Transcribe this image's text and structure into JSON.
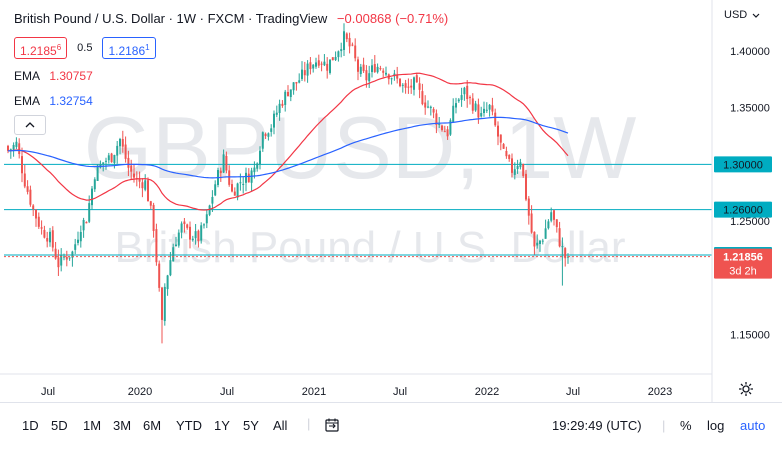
{
  "header": {
    "title": "British Pound / U.S. Dollar · 1W · FXCM · TradingView",
    "change": "−0.00868 (−0.71%)",
    "sell_price": "1.2185",
    "sell_price_sup": "6",
    "spread": "0.5",
    "buy_price": "1.2186",
    "buy_price_sup": "1"
  },
  "indicators": [
    {
      "name": "EMA",
      "value": "1.30757",
      "color": "#f23645"
    },
    {
      "name": "EMA",
      "value": "1.32754",
      "color": "#2962ff"
    }
  ],
  "collapse_icon": "chevron-up-icon",
  "currency_label": "USD",
  "watermark": {
    "symbol": "GBPUSD, 1W",
    "description": "British Pound / U.S. Dollar"
  },
  "colors": {
    "up": "#26a69a",
    "down": "#ef5350",
    "ema_fast": "#f23645",
    "ema_slow": "#2962ff",
    "hline": "#00acc1",
    "price_label": "#ef5350"
  },
  "toolbar": {
    "timeframes": [
      "1D",
      "5D",
      "1M",
      "3M",
      "6M",
      "YTD",
      "1Y",
      "5Y",
      "All"
    ],
    "compare_icon": "calendar-range-icon",
    "clock": "19:29:49 (UTC)",
    "percent": "%",
    "log": "log",
    "auto": "auto"
  },
  "settings_icon": "gear-icon",
  "chart_data": {
    "type": "candlestick",
    "title": "British Pound / U.S. Dollar · 1W · FXCM · TradingView",
    "ylim": [
      1.115,
      1.445
    ],
    "y_ticks": [
      "1.40000",
      "1.35000",
      "1.25000",
      "1.15000"
    ],
    "x_ticks": [
      "Jul",
      "2020",
      "Jul",
      "2021",
      "Jul",
      "2022",
      "Jul",
      "2023"
    ],
    "horizontal_lines": [
      {
        "value": 1.3,
        "label": "1.30000"
      },
      {
        "value": 1.26,
        "label": "1.26000"
      },
      {
        "value": 1.22,
        "label": "1.22000"
      }
    ],
    "last_price": {
      "value": 1.21856,
      "label": "1.21856",
      "countdown": "3d 2h"
    },
    "ohlc_anchor_closes": [
      [
        0,
        1.312
      ],
      [
        3,
        1.318
      ],
      [
        6,
        1.285
      ],
      [
        9,
        1.26
      ],
      [
        12,
        1.242
      ],
      [
        15,
        1.235
      ],
      [
        18,
        1.212
      ],
      [
        20,
        1.218
      ],
      [
        23,
        1.222
      ],
      [
        26,
        1.246
      ],
      [
        28,
        1.252
      ],
      [
        31,
        1.292
      ],
      [
        34,
        1.302
      ],
      [
        37,
        1.307
      ],
      [
        40,
        1.322
      ],
      [
        43,
        1.297
      ],
      [
        46,
        1.285
      ],
      [
        49,
        1.284
      ],
      [
        52,
        1.245
      ],
      [
        55,
        1.158
      ],
      [
        56,
        1.192
      ],
      [
        59,
        1.228
      ],
      [
        62,
        1.245
      ],
      [
        65,
        1.238
      ],
      [
        68,
        1.235
      ],
      [
        71,
        1.252
      ],
      [
        74,
        1.283
      ],
      [
        77,
        1.305
      ],
      [
        80,
        1.275
      ],
      [
        83,
        1.285
      ],
      [
        86,
        1.29
      ],
      [
        88,
        1.296
      ],
      [
        91,
        1.328
      ],
      [
        94,
        1.334
      ],
      [
        97,
        1.352
      ],
      [
        100,
        1.365
      ],
      [
        103,
        1.372
      ],
      [
        106,
        1.381
      ],
      [
        108,
        1.388
      ],
      [
        111,
        1.393
      ],
      [
        114,
        1.387
      ],
      [
        117,
        1.398
      ],
      [
        120,
        1.412
      ],
      [
        123,
        1.4
      ],
      [
        125,
        1.383
      ],
      [
        128,
        1.376
      ],
      [
        131,
        1.387
      ],
      [
        134,
        1.385
      ],
      [
        137,
        1.378
      ],
      [
        140,
        1.372
      ],
      [
        142,
        1.365
      ],
      [
        145,
        1.371
      ],
      [
        148,
        1.358
      ],
      [
        151,
        1.348
      ],
      [
        154,
        1.335
      ],
      [
        157,
        1.328
      ],
      [
        160,
        1.355
      ],
      [
        163,
        1.364
      ],
      [
        166,
        1.353
      ],
      [
        169,
        1.342
      ],
      [
        172,
        1.35
      ],
      [
        174,
        1.333
      ],
      [
        177,
        1.308
      ],
      [
        180,
        1.295
      ],
      [
        183,
        1.305
      ],
      [
        186,
        1.255
      ],
      [
        188,
        1.225
      ],
      [
        191,
        1.236
      ],
      [
        194,
        1.258
      ],
      [
        197,
        1.232
      ],
      [
        199,
        1.218
      ],
      [
        200,
        1.21856
      ]
    ],
    "ema_fast_last": 1.30757,
    "ema_slow_last": 1.32754
  }
}
